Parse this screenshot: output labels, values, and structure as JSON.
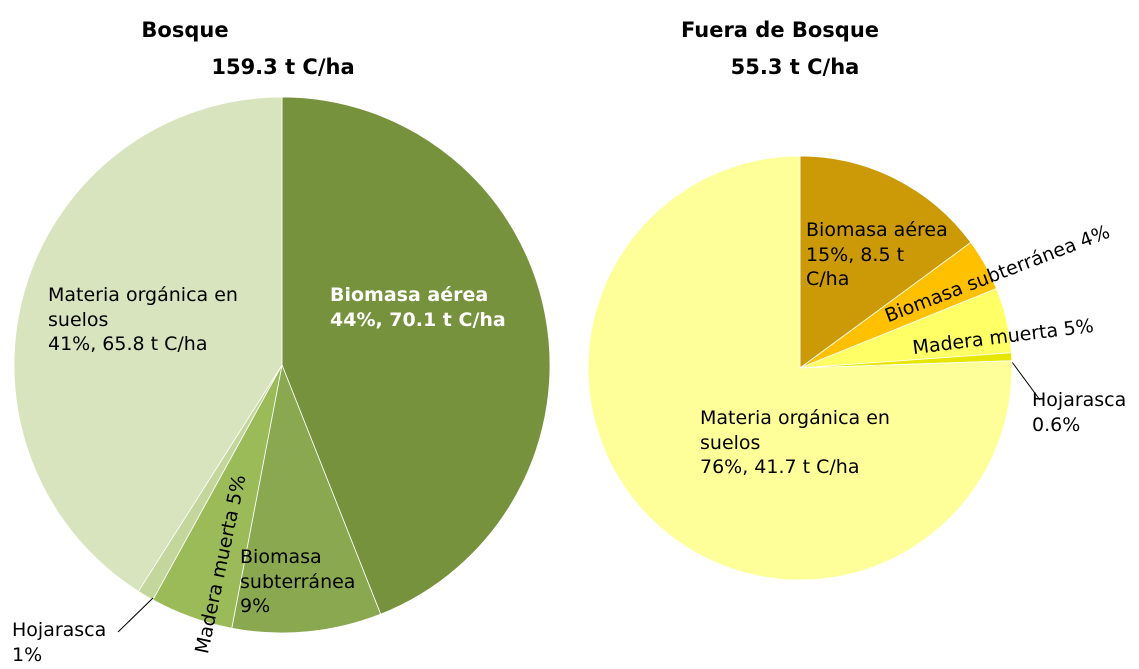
{
  "chart_data": [
    {
      "type": "pie",
      "title": "Bosque",
      "subtitle": "159.3 t C/ha",
      "categories": [
        "Biomasa aérea",
        "Biomasa subterránea",
        "Madera muerta",
        "Hojarasca",
        "Materia orgánica en suelos"
      ],
      "values": [
        44,
        9,
        5,
        1,
        41
      ],
      "value_labels": [
        "44%, 70.1 t C/ha",
        "9%",
        "5%",
        "1%",
        "41%, 65.8 t C/ha"
      ],
      "colors": [
        "#77923c",
        "#8aa84f",
        "#9bbb59",
        "#c3d69b",
        "#d7e4bd"
      ]
    },
    {
      "type": "pie",
      "title": "Fuera de Bosque",
      "subtitle": "55.3 t C/ha",
      "categories": [
        "Biomasa aérea",
        "Biomasa subterránea",
        "Madera muerta",
        "Hojarasca",
        "Materia orgánica en suelos"
      ],
      "values": [
        15,
        4,
        5,
        0.6,
        76
      ],
      "value_labels": [
        "15%, 8.5 t C/ha",
        "4%",
        "5%",
        "0.6%",
        "76%, 41.7 t C/ha"
      ],
      "colors": [
        "#cc9a06",
        "#ffc000",
        "#ffff66",
        "#e6e600",
        "#ffff99"
      ]
    }
  ]
}
